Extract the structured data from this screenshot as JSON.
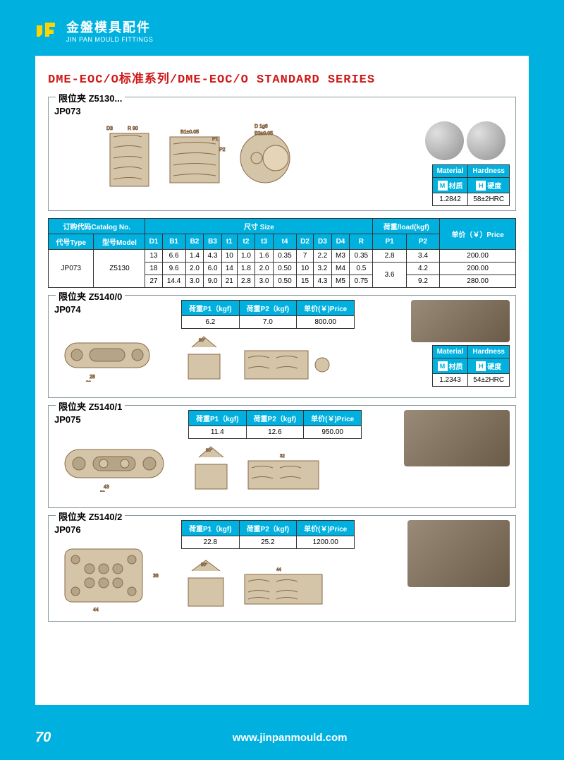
{
  "header": {
    "company_cn": "金盤模具配件",
    "company_en": "JIN PAN MOULD FITTINGS"
  },
  "series_title": "DME-EOC/O标准系列/DME-EOC/O STANDARD SERIES",
  "jp073": {
    "title": "限位夹 Z5130...",
    "code": "JP073",
    "material_header": "Material",
    "hardness_header": "Hardness",
    "material_label": "材质",
    "hardness_label": "硬度",
    "material_value": "1.2842",
    "hardness_value": "58±2HRC",
    "table": {
      "catalog_header": "订购代码Catalog No.",
      "size_header": "尺寸 Size",
      "load_header": "荷重/load(kgf)",
      "price_header": "单价（￥）Price",
      "type_header": "代号Type",
      "model_header": "型号Model",
      "cols": [
        "D1",
        "B1",
        "B2",
        "B3",
        "t1",
        "t2",
        "t3",
        "t4",
        "D2",
        "D3",
        "D4",
        "R",
        "P1",
        "P2"
      ],
      "type": "JP073",
      "model": "Z5130",
      "rows": [
        [
          "13",
          "6.6",
          "1.4",
          "4.3",
          "10",
          "1.0",
          "1.6",
          "0.35",
          "7",
          "2.2",
          "M3",
          "0.35",
          "2.8",
          "3.4",
          "200.00"
        ],
        [
          "18",
          "9.6",
          "2.0",
          "6.0",
          "14",
          "1.8",
          "2.0",
          "0.50",
          "10",
          "3.2",
          "M4",
          "0.5",
          "_3.6_",
          "4.2",
          "200.00"
        ],
        [
          "27",
          "14.4",
          "3.0",
          "9.0",
          "21",
          "2.8",
          "3.0",
          "0.50",
          "15",
          "4.3",
          "M5",
          "0.75",
          "_merge_",
          "9.2",
          "280.00"
        ]
      ]
    }
  },
  "jp074": {
    "title": "限位夹 Z5140/0",
    "code": "JP074",
    "p1_header": "荷重P1（kgf)",
    "p2_header": "荷重P2（kgf)",
    "price_header": "单价(￥)Price",
    "p1": "6.2",
    "p2": "7.0",
    "price": "800.00",
    "material_header": "Material",
    "hardness_header": "Hardness",
    "material_label": "材质",
    "hardness_label": "硬度",
    "material_value": "1.2343",
    "hardness_value": "54±2HRC"
  },
  "jp075": {
    "title": "限位夹 Z5140/1",
    "code": "JP075",
    "p1_header": "荷重P1（kgf)",
    "p2_header": "荷重P2（kgf)",
    "price_header": "单价(￥)Price",
    "p1": "11.4",
    "p2": "12.6",
    "price": "950.00"
  },
  "jp076": {
    "title": "限位夹 Z5140/2",
    "code": "JP076",
    "p1_header": "荷重P1（kgf)",
    "p2_header": "荷重P2（kgf)",
    "price_header": "单价(￥)Price",
    "p1": "22.8",
    "p2": "25.2",
    "price": "1200.00"
  },
  "footer": {
    "page": "70",
    "url": "www.jinpanmould.com"
  },
  "colors": {
    "bg": "#00b1e0",
    "title": "#d01818",
    "border": "#8a9aa0"
  }
}
